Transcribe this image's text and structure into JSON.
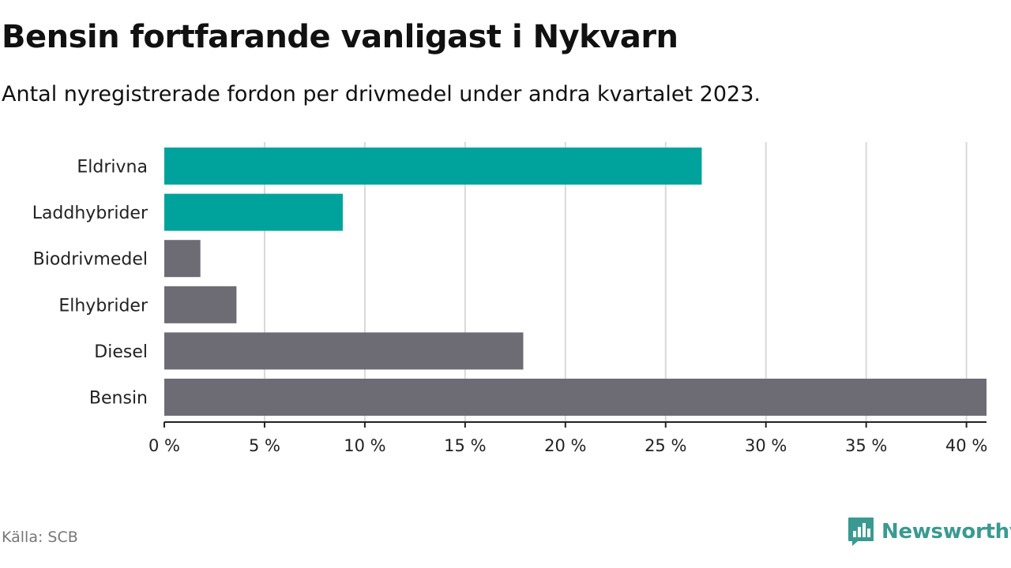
{
  "header": {
    "title": "Bensin fortfarande vanligast i Nykvarn",
    "subtitle": "Antal nyregistrerade fordon per drivmedel under andra kvartalet 2023."
  },
  "footer": {
    "source": "Källa: SCB",
    "brand": "Newsworthy"
  },
  "colors": {
    "highlight": "#00a39b",
    "default": "#6d6c74",
    "grid": "#d9d9d9",
    "brand": "#3a9a91"
  },
  "icons": {
    "brand_logo": "newsworthy-chart-bubble-icon"
  },
  "chart_data": {
    "type": "bar",
    "orientation": "horizontal",
    "categories": [
      "Eldrivna",
      "Laddhybrider",
      "Biodrivmedel",
      "Elhybrider",
      "Diesel",
      "Bensin"
    ],
    "values": [
      26.8,
      8.9,
      1.8,
      3.6,
      17.9,
      41.0
    ],
    "highlighted": [
      true,
      true,
      false,
      false,
      false,
      false
    ],
    "xlim": [
      0,
      41
    ],
    "xticks": [
      0,
      5,
      10,
      15,
      20,
      25,
      30,
      35,
      40
    ],
    "xtick_labels": [
      "0 %",
      "5 %",
      "10 %",
      "15 %",
      "20 %",
      "25 %",
      "30 %",
      "35 %",
      "40 %"
    ],
    "grid": true,
    "legend": "none"
  }
}
